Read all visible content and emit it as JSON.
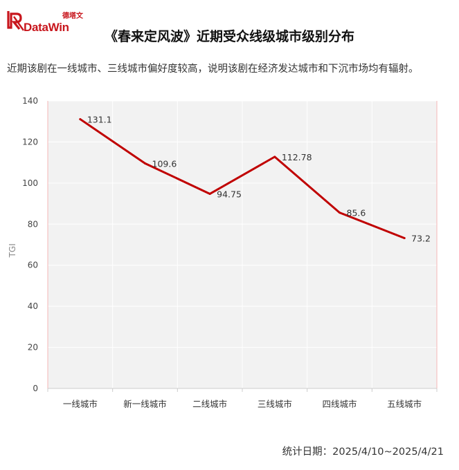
{
  "logo": {
    "text_cn": "德塔文",
    "text_en": "DataWin",
    "icon": "datawin-logo-icon",
    "color": "#c8161d"
  },
  "title": "《春来定风波》近期受众线级城市级别分布",
  "subtitle": "近期该剧在一线城市、三线城市偏好度较高，说明该剧在经济发达城市和下沉市场均有辐射。",
  "footer": {
    "date_label": "统计日期：2025/4/10~2025/4/21"
  },
  "chart_data": {
    "type": "line",
    "categories": [
      "一线城市",
      "新一线城市",
      "二线城市",
      "三线城市",
      "四线城市",
      "五线城市"
    ],
    "series": [
      {
        "values": [
          131.1,
          109.6,
          94.75,
          112.78,
          85.6,
          73.2
        ],
        "color": "#c00000"
      }
    ],
    "data_labels": [
      "131.1",
      "109.6",
      "94.75",
      "112.78",
      "85.6",
      "73.2"
    ],
    "ylabel": "TGI",
    "xlabel": "",
    "ylim": [
      0,
      140
    ],
    "yticks": [
      0,
      20,
      40,
      60,
      80,
      100,
      120,
      140
    ],
    "grid": true,
    "plot_background": "#f2f2f2",
    "grid_color": "#ffffff"
  }
}
